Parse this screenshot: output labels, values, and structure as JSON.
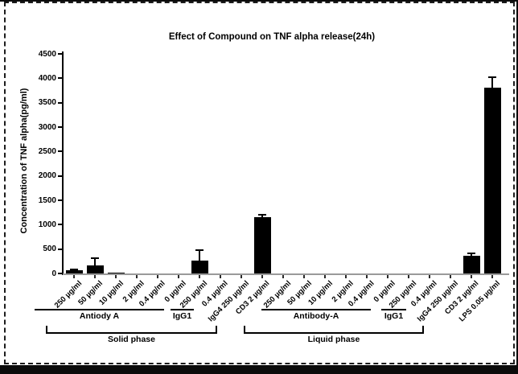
{
  "figure": {
    "title": "Effect of Compound on TNF alpha release(24h)",
    "colors": {
      "bar": "#000000",
      "axis": "#000000",
      "baseline": "#9a9a9a",
      "frame": "#0b0b0b",
      "background": "#ffffff"
    }
  },
  "chart_data": {
    "type": "bar",
    "title": "Effect of Compound on TNF alpha release(24h)",
    "xlabel": "",
    "ylabel": "Concentration of TNF alpha(pg/ml)",
    "ylim": [
      0,
      4500
    ],
    "ytick_step": 500,
    "grid": false,
    "legend": "none",
    "bar_color": "#000000",
    "categories": [
      "250 µg/ml",
      "50 µg/ml",
      "10 µg/ml",
      "2 µg/ml",
      "0.4 µg/ml",
      "0 µg/ml",
      "250 µg/ml",
      "0.4 µg/ml",
      "IgG4 250 µg/ml",
      "CD3 2 µg/ml",
      "250 µg/ml",
      "50 µg/ml",
      "10 µg/ml",
      "2 µg/ml",
      "0.4 µg/ml",
      "0 µg/ml",
      "250 µg/ml",
      "0.4 µg/ml",
      "IgG4 250 µg/ml",
      "CD3 2 µg/ml",
      "LPS 0.05 µg/ml"
    ],
    "values": [
      60,
      170,
      15,
      0,
      0,
      0,
      270,
      0,
      0,
      1150,
      0,
      0,
      0,
      0,
      0,
      0,
      0,
      0,
      0,
      370,
      3800
    ],
    "errors": [
      25,
      150,
      0,
      0,
      0,
      0,
      200,
      0,
      0,
      50,
      0,
      0,
      0,
      0,
      0,
      0,
      0,
      0,
      0,
      40,
      230
    ],
    "groups": [
      {
        "label": "Antiody A",
        "start": 0,
        "end": 5
      },
      {
        "label": "IgG1",
        "start": 6,
        "end": 7
      },
      {
        "label": "Antibody-A",
        "start": 10,
        "end": 15
      },
      {
        "label": "IgG1",
        "start": 16,
        "end": 17
      }
    ],
    "phases": [
      {
        "label": "Solid phase",
        "start": 0,
        "end": 9
      },
      {
        "label": "Liquid phase",
        "start": 10,
        "end": 20
      }
    ]
  }
}
